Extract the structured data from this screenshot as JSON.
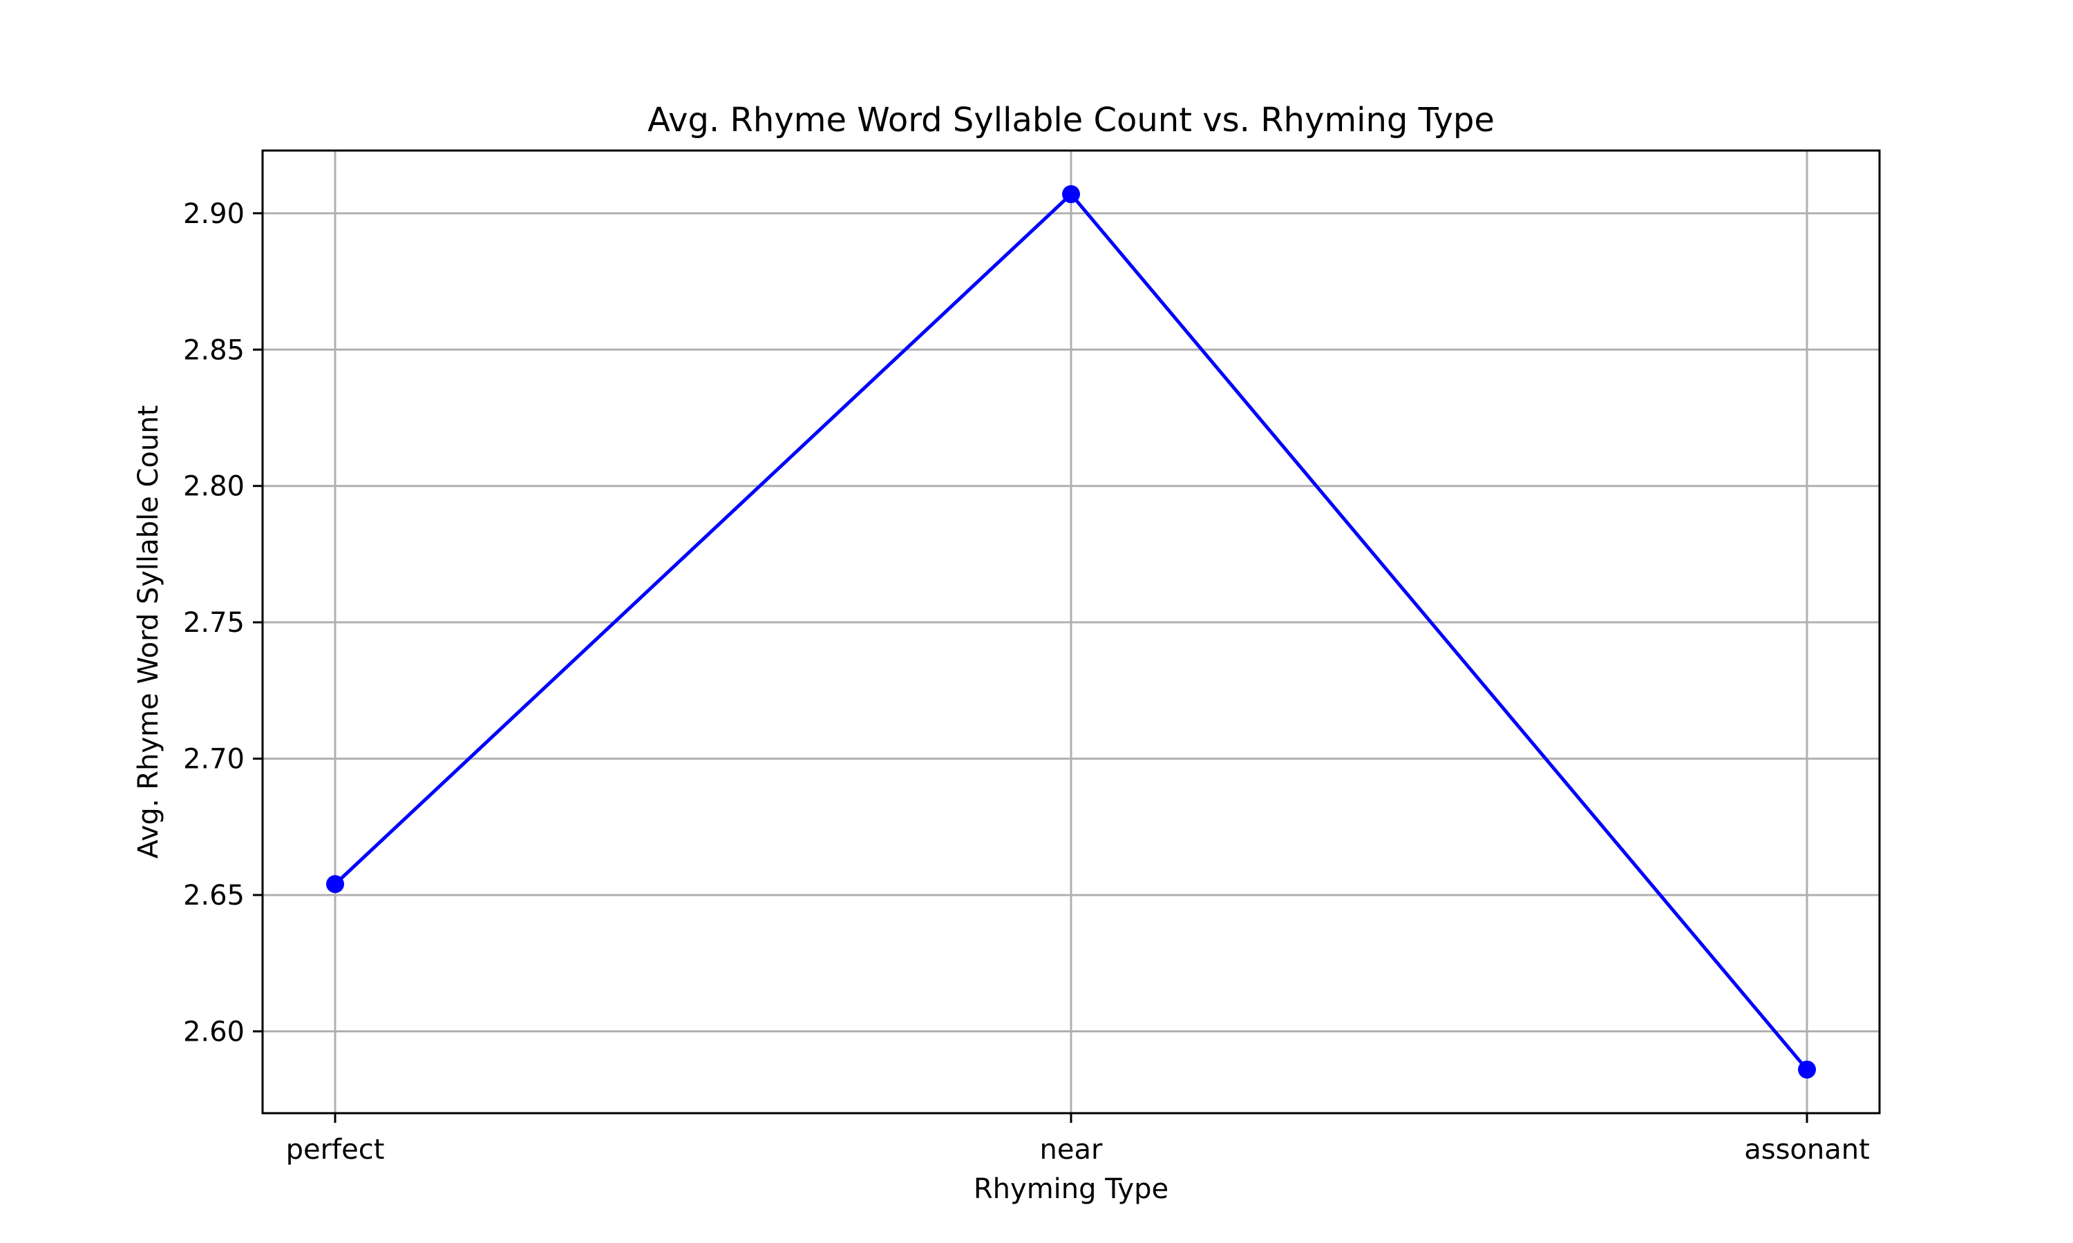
{
  "chart_data": {
    "type": "line",
    "title": "Avg. Rhyme Word Syllable Count vs. Rhyming Type",
    "xlabel": "Rhyming Type",
    "ylabel": "Avg. Rhyme Word Syllable Count",
    "categories": [
      "perfect",
      "near",
      "assonant"
    ],
    "series": [
      {
        "values": [
          2.654,
          2.907,
          2.586
        ],
        "color": "#0000ff",
        "marker": "circle"
      }
    ],
    "ylim": [
      2.57,
      2.923
    ],
    "yticks": [
      2.6,
      2.65,
      2.7,
      2.75,
      2.8,
      2.85,
      2.9
    ],
    "ytick_labels": [
      "2.60",
      "2.65",
      "2.70",
      "2.75",
      "2.80",
      "2.85",
      "2.90"
    ],
    "grid": true,
    "legend": false
  }
}
